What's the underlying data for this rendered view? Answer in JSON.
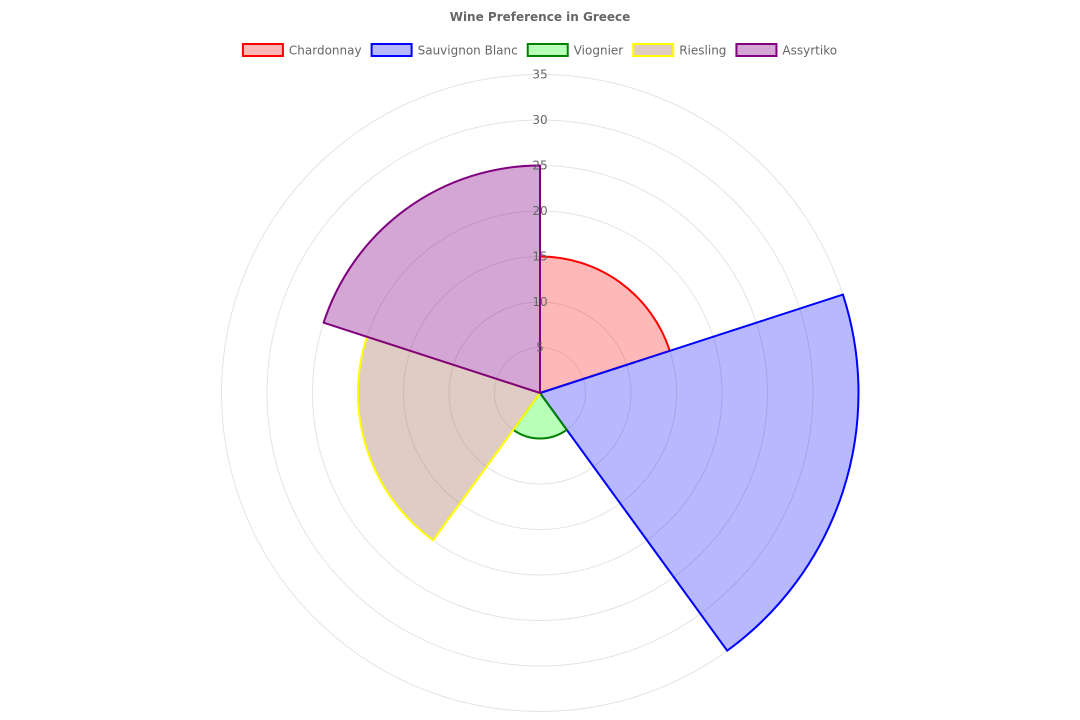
{
  "chart_data": {
    "type": "polarArea",
    "title": "Wine Preference in Greece",
    "categories": [
      "Chardonnay",
      "Sauvignon Blanc",
      "Viognier",
      "Riesling",
      "Assyrtiko"
    ],
    "values": [
      15,
      35,
      5,
      20,
      25
    ],
    "colors": {
      "Chardonnay": {
        "border": "#ff0000",
        "fill": "rgba(255,0,0,0.28)"
      },
      "Sauvignon Blanc": {
        "border": "#0000ff",
        "fill": "rgba(0,0,255,0.28)"
      },
      "Viognier": {
        "border": "#008000",
        "fill": "rgba(0,255,0,0.28)"
      },
      "Riesling": {
        "border": "#ffff00",
        "fill": "rgba(160,110,90,0.35)"
      },
      "Assyrtiko": {
        "border": "#800080",
        "fill": "rgba(128,0,128,0.35)"
      }
    },
    "r_range": [
      0,
      35
    ],
    "r_ticks": [
      5,
      10,
      15,
      20,
      25,
      30,
      35
    ],
    "grid": true,
    "legend_position": "top"
  }
}
